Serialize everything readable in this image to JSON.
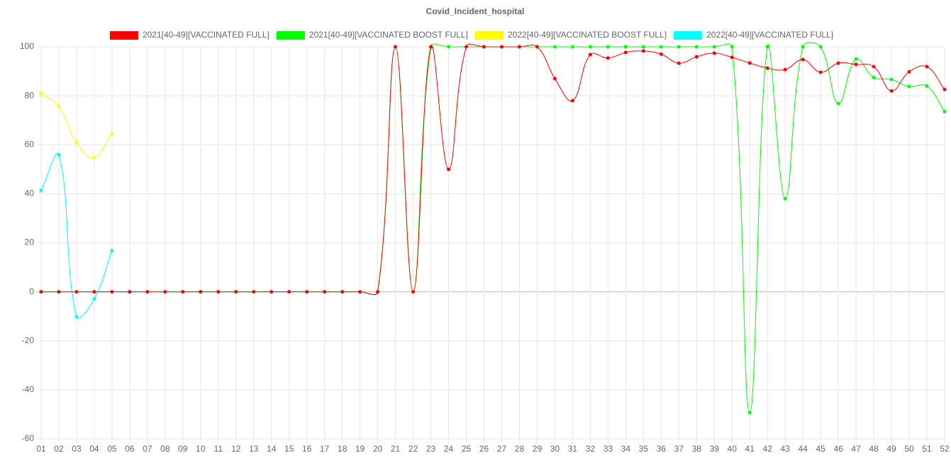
{
  "chart_data": {
    "type": "line",
    "title": "Covid_Incident_hospital",
    "categories": [
      "01",
      "02",
      "03",
      "04",
      "05",
      "06",
      "07",
      "08",
      "09",
      "10",
      "11",
      "12",
      "13",
      "14",
      "15",
      "16",
      "17",
      "18",
      "19",
      "20",
      "21",
      "22",
      "23",
      "24",
      "25",
      "26",
      "27",
      "28",
      "29",
      "30",
      "31",
      "32",
      "33",
      "34",
      "35",
      "36",
      "37",
      "38",
      "39",
      "40",
      "41",
      "42",
      "43",
      "44",
      "45",
      "46",
      "47",
      "48",
      "49",
      "50",
      "51",
      "52"
    ],
    "series": [
      {
        "name": "2021[40-49][VACCINATED FULL]",
        "color": "#ff0000",
        "values": [
          0,
          0,
          0,
          0,
          0,
          0,
          0,
          0,
          0,
          0,
          0,
          0,
          0,
          0,
          0,
          0,
          0,
          0,
          0,
          0,
          100,
          0,
          100,
          50,
          100,
          100,
          100,
          100,
          100,
          87,
          78,
          96.8,
          95.4,
          97.7,
          98.3,
          97,
          93.3,
          95.9,
          97.4,
          95.7,
          93.4,
          91.3,
          90.7,
          94.8,
          89.6,
          93.3,
          92.8,
          91.9,
          82,
          89.8,
          91.9,
          82.6
        ]
      },
      {
        "name": "2021[40-49][VACCINATED BOOST FULL]",
        "color": "#00ff00",
        "values": [
          0,
          0,
          0,
          0,
          0,
          0,
          0,
          0,
          0,
          0,
          0,
          0,
          0,
          0,
          0,
          0,
          0,
          0,
          0,
          0,
          100,
          0,
          100,
          100,
          100,
          100,
          100,
          100,
          100,
          100,
          100,
          100,
          100,
          100,
          100,
          100,
          100,
          100,
          100,
          100,
          -49.3,
          100,
          38,
          100,
          100,
          76.8,
          95,
          87.5,
          86.7,
          83.8,
          84,
          73.6
        ]
      },
      {
        "name": "2022[40-49][VACCINATED BOOST FULL]",
        "color": "#ffff00",
        "values": [
          80.9,
          75.7,
          60.9,
          54.8,
          64.6,
          null,
          null,
          null,
          null,
          null,
          null,
          null,
          null,
          null,
          null,
          null,
          null,
          null,
          null,
          null,
          null,
          null,
          null,
          null,
          null,
          null,
          null,
          null,
          null,
          null,
          null,
          null,
          null,
          null,
          null,
          null,
          null,
          null,
          null,
          null,
          null,
          null,
          null,
          null,
          null,
          null,
          null,
          null,
          null,
          null,
          null,
          null
        ]
      },
      {
        "name": "2022[40-49][VACCINATED FULL]",
        "color": "#00ffff",
        "values": [
          41.4,
          55.9,
          -10.1,
          -2.9,
          16.8,
          null,
          null,
          null,
          null,
          null,
          null,
          null,
          null,
          null,
          null,
          null,
          null,
          null,
          null,
          null,
          null,
          null,
          null,
          null,
          null,
          null,
          null,
          null,
          null,
          null,
          null,
          null,
          null,
          null,
          null,
          null,
          null,
          null,
          null,
          null,
          null,
          null,
          null,
          null,
          null,
          null,
          null,
          null,
          null,
          null,
          null,
          null
        ]
      }
    ],
    "ylim": [
      -60,
      100
    ],
    "yticks": [
      -60,
      -40,
      -20,
      0,
      20,
      40,
      60,
      80,
      100
    ],
    "grid": true,
    "legend": "top"
  }
}
